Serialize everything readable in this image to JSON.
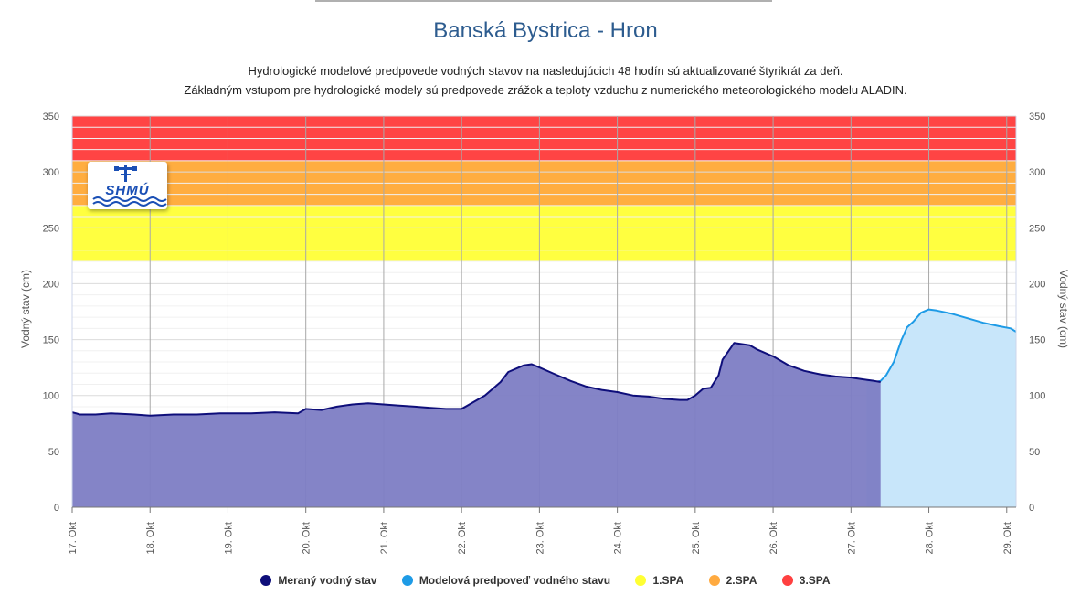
{
  "page": {
    "title": "Banská Bystrica - Hron",
    "subtitle_line1": "Hydrologické modelové predpovede vodných stavov na nasledujúcich 48 hodín sú aktualizované štyrikrát za deň.",
    "subtitle_line2": "Základným vstupom pre hydrologické modely sú predpovede zrážok a teploty vzduchu z numerického meteorologického modelu ALADIN."
  },
  "logo": {
    "text": "SHMÚ"
  },
  "legend": {
    "items": [
      {
        "label": "Meraný vodný stav",
        "color": "#0e0e7a"
      },
      {
        "label": "Modelová predpoveď vodného stavu",
        "color": "#1e9be6"
      },
      {
        "label": "1.SPA",
        "color": "#ffff33"
      },
      {
        "label": "2.SPA",
        "color": "#ffaa40"
      },
      {
        "label": "3.SPA",
        "color": "#ff4040"
      }
    ]
  },
  "chart_data": {
    "type": "area",
    "ylabel_left": "Vodný stav (cm)",
    "ylabel_right": "Vodný stav (cm)",
    "ylim": [
      0,
      350
    ],
    "y_ticks": [
      0,
      50,
      100,
      150,
      200,
      250,
      300,
      350
    ],
    "x_unit": "day",
    "x_ticks": [
      "17. Okt",
      "18. Okt",
      "19. Okt",
      "20. Okt",
      "21. Okt",
      "22. Okt",
      "23. Okt",
      "24. Okt",
      "25. Okt",
      "26. Okt",
      "27. Okt",
      "28. Okt",
      "29. Okt"
    ],
    "xlim": [
      17.0,
      29.12
    ],
    "grid": true,
    "legend_position": "bottom",
    "bands": [
      {
        "name": "1.SPA",
        "from": 220,
        "to": 270,
        "color": "#ffff40"
      },
      {
        "name": "2.SPA",
        "from": 270,
        "to": 310,
        "color": "#ffad40"
      },
      {
        "name": "3.SPA",
        "from": 310,
        "to": 350,
        "color": "#ff4444"
      }
    ],
    "series": [
      {
        "name": "Meraný vodný stav",
        "color": "#0e0e7a",
        "fill": "#7d7dc4",
        "x": [
          17.0,
          17.1,
          17.3,
          17.5,
          17.8,
          18.0,
          18.3,
          18.6,
          18.9,
          19.0,
          19.3,
          19.6,
          19.9,
          20.0,
          20.2,
          20.4,
          20.6,
          20.8,
          21.0,
          21.2,
          21.4,
          21.6,
          21.8,
          22.0,
          22.1,
          22.3,
          22.5,
          22.6,
          22.8,
          22.9,
          23.0,
          23.2,
          23.4,
          23.6,
          23.8,
          24.0,
          24.2,
          24.4,
          24.6,
          24.8,
          24.9,
          25.0,
          25.1,
          25.2,
          25.3,
          25.35,
          25.45,
          25.5,
          25.6,
          25.7,
          25.8,
          26.0,
          26.2,
          26.4,
          26.6,
          26.8,
          27.0,
          27.1,
          27.2,
          27.3,
          27.38
        ],
        "y": [
          85,
          83,
          83,
          84,
          83,
          82,
          83,
          83,
          84,
          84,
          84,
          85,
          84,
          88,
          87,
          90,
          92,
          93,
          92,
          91,
          90,
          89,
          88,
          88,
          92,
          100,
          112,
          121,
          127,
          128,
          125,
          119,
          113,
          108,
          105,
          103,
          100,
          99,
          97,
          96,
          96,
          100,
          106,
          107,
          118,
          132,
          142,
          147,
          146,
          145,
          141,
          135,
          127,
          122,
          119,
          117,
          116,
          115,
          114,
          113,
          112
        ]
      },
      {
        "name": "Modelová predpoveď vodného stavu",
        "color": "#1e9be6",
        "fill": "#c8e6fa",
        "x": [
          27.2,
          27.3,
          27.38,
          27.45,
          27.55,
          27.65,
          27.72,
          27.8,
          27.9,
          28.0,
          28.1,
          28.3,
          28.5,
          28.7,
          28.9,
          29.05,
          29.12
        ],
        "y": [
          113,
          112,
          113,
          118,
          130,
          150,
          161,
          166,
          174,
          177,
          176,
          173,
          169,
          165,
          162,
          160,
          157
        ]
      }
    ]
  }
}
